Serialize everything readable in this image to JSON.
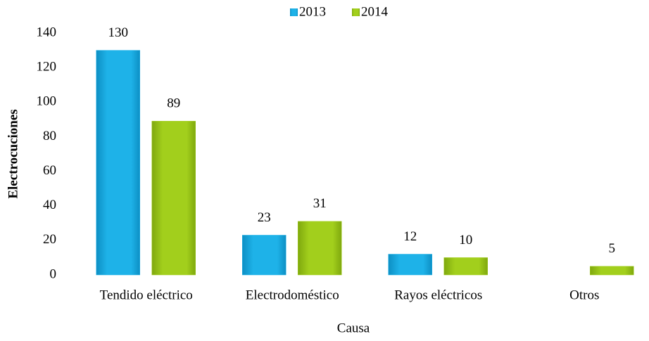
{
  "chart_data": {
    "type": "bar",
    "categories": [
      "Tendido eléctrico",
      "Electrodoméstico",
      "Rayos eléctricos",
      "Otros"
    ],
    "series": [
      {
        "name": "2013",
        "color": "#1eb2e8",
        "values": [
          130,
          23,
          12,
          null
        ]
      },
      {
        "name": "2014",
        "color": "#a2cf1c",
        "values": [
          89,
          31,
          10,
          5
        ]
      }
    ],
    "xlabel": "Causa",
    "ylabel": "Electrocuciones",
    "ylim": [
      0,
      140
    ],
    "yticks": [
      0,
      20,
      40,
      60,
      80,
      100,
      120,
      140
    ],
    "grid": false,
    "legend": "top"
  }
}
